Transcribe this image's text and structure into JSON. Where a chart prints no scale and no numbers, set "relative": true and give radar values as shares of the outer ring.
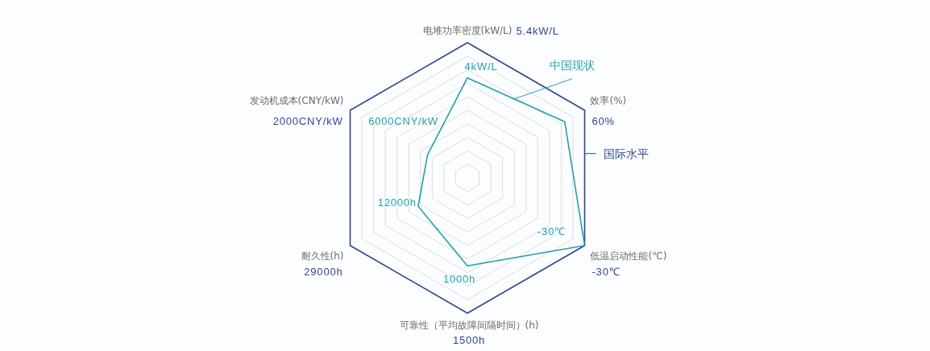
{
  "chart_data": {
    "type": "radar",
    "relative": true,
    "grid": true,
    "categories": [
      "电堆功率密度(kW/L)",
      "效率(%)",
      "低温启动性能(℃)",
      "可靠性（平均故障间隔时间）(h)",
      "耐久性(h)",
      "发动机成本(CNY/kW)"
    ],
    "series": [
      {
        "name": "中国现状",
        "color": "#1fa3a8",
        "values": [
          0.74,
          0.83,
          1,
          0.65,
          0.42,
          0.34
        ]
      }
    ],
    "annotations": [
      "国际水平",
      {
        "text": "5.4kW/L",
        "x": "电堆功率密度(kW/L)"
      },
      {
        "text": "60%",
        "x": "效率(%)"
      },
      {
        "text": "-30℃",
        "x": "低温启动性能(℃)"
      },
      {
        "text": "1500h",
        "x": "可靠性（平均故障间隔时间）(h)"
      },
      {
        "text": "29000h",
        "x": "耐久性(h)"
      },
      {
        "text": "2000CNY/kW",
        "x": "发动机成本(CNY/kW)"
      },
      {
        "text": "4kW/L",
        "x": "电堆功率密度(kW/L)"
      },
      {
        "text": "-30℃",
        "x": "低温启动性能(℃)"
      },
      {
        "text": "1000h",
        "x": "可靠性（平均故障间隔时间）(h)"
      },
      {
        "text": "12000h",
        "x": "耐久性(h)"
      },
      {
        "text": "6000CNY/kW",
        "x": "发动机成本(CNY/kW)"
      }
    ]
  }
}
